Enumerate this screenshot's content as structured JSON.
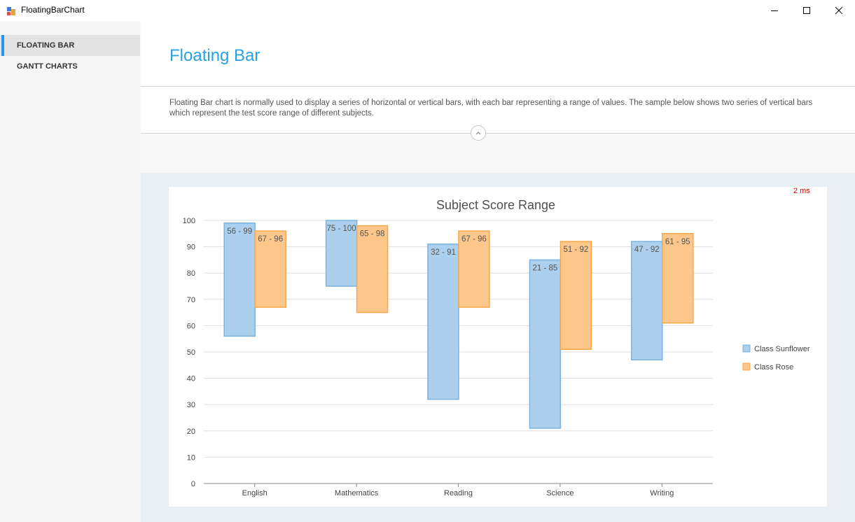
{
  "window": {
    "title": "FloatingBarChart",
    "controls": [
      "minimize",
      "maximize",
      "close"
    ]
  },
  "sidebar": {
    "items": [
      {
        "label": "FLOATING BAR",
        "active": true
      },
      {
        "label": "GANTT CHARTS",
        "active": false
      }
    ],
    "accent": "#2196f3"
  },
  "header": {
    "title": "Floating Bar",
    "description": "Floating Bar chart is normally used to display a series of horizontal or vertical bars, with each bar representing a range of values. The sample below shows two series of vertical bars which represent the test score range of different subjects.",
    "title_color": "#2aa0e0"
  },
  "timing": "2 ms",
  "chart_data": {
    "type": "bar",
    "subtype": "floating-range",
    "title": "Subject Score Range",
    "categories": [
      "English",
      "Mathematics",
      "Reading",
      "Science",
      "Writing"
    ],
    "series": [
      {
        "name": "Class Sunflower",
        "color": "#abcfec",
        "border": "#7ab3e0",
        "ranges": [
          [
            56,
            99
          ],
          [
            75,
            100
          ],
          [
            32,
            91
          ],
          [
            21,
            85
          ],
          [
            47,
            92
          ]
        ],
        "labels": [
          "56 - 99",
          "75 - 100",
          "32 - 91",
          "21 - 85",
          "47 - 92"
        ]
      },
      {
        "name": "Class Rose",
        "color": "#fdc68a",
        "border": "#f5a84a",
        "ranges": [
          [
            67,
            96
          ],
          [
            65,
            98
          ],
          [
            67,
            96
          ],
          [
            51,
            92
          ],
          [
            61,
            95
          ]
        ],
        "labels": [
          "67 - 96",
          "65 - 98",
          "67 - 96",
          "51 - 92",
          "61 - 95"
        ]
      }
    ],
    "ylim": [
      0,
      100
    ],
    "yticks": [
      0,
      10,
      20,
      30,
      40,
      50,
      60,
      70,
      80,
      90,
      100
    ],
    "grid": true,
    "legend": "right"
  }
}
